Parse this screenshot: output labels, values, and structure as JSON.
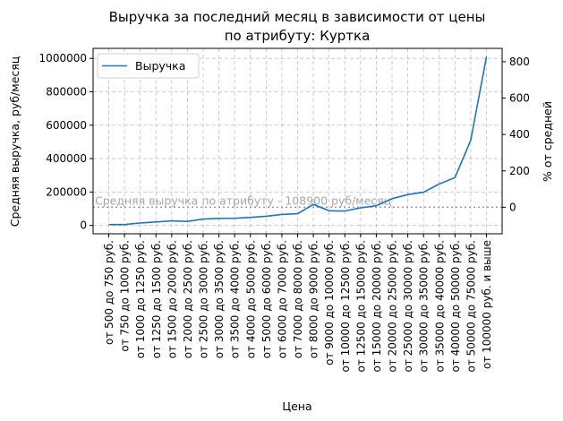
{
  "chart_data": {
    "type": "line",
    "title": "Выручка за последний месяц в зависимости от цены\nпо атрибуту: Куртка",
    "xlabel": "Цена",
    "ylabel": "Средняя выручка, руб/месяц",
    "ylabel_right": "% от средней",
    "ylim": [
      -50000,
      1060000
    ],
    "yticks": [
      0,
      200000,
      400000,
      600000,
      800000,
      1000000
    ],
    "yticks_right": [
      0,
      200,
      400,
      600,
      800
    ],
    "grid": true,
    "legend_position": "top-left",
    "categories": [
      "от 500 до 750 руб.",
      "от 750 до 1000 руб.",
      "от 1000 до 1250 руб.",
      "от 1250 до 1500 руб.",
      "от 1500 до 2000 руб.",
      "от 2000 до 2500 руб.",
      "от 2500 до 3000 руб.",
      "от 3000 до 3500 руб.",
      "от 3500 до 4000 руб.",
      "от 4000 до 5000 руб.",
      "от 5000 до 6000 руб.",
      "от 6000 до 7000 руб.",
      "от 7000 до 8000 руб.",
      "от 8000 до 9000 руб.",
      "от 9000 до 10000 руб.",
      "от 10000 до 12500 руб.",
      "от 12500 до 15000 руб.",
      "от 15000 до 20000 руб.",
      "от 20000 до 25000 руб.",
      "от 25000 до 30000 руб.",
      "от 30000 до 35000 руб.",
      "от 35000 до 40000 руб.",
      "от 40000 до 50000 руб.",
      "от 50000 до 75000 руб.",
      "от 100000 руб. и выше"
    ],
    "series": [
      {
        "name": "Выручка",
        "color": "#1f77b4",
        "values": [
          5000,
          5000,
          15000,
          21000,
          27000,
          24000,
          38000,
          42000,
          43000,
          48000,
          55000,
          66000,
          70000,
          126000,
          88000,
          86000,
          105000,
          118000,
          160000,
          185000,
          199000,
          248000,
          287000,
          510000,
          1010000
        ]
      }
    ],
    "reference_line": {
      "value": 108900,
      "label": "Средняя выручка по атрибуту - 108900 руб/месяц",
      "color": "#9a9a9a"
    }
  }
}
